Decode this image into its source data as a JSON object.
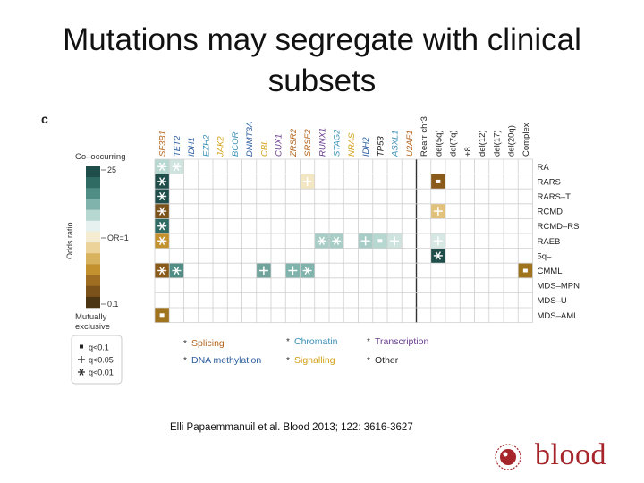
{
  "slide": {
    "title": "Mutations may segregate with clinical subsets",
    "citation": "Elli Papaemmanuil et al. Blood 2013; 122: 3616-3627",
    "logo_text": "blood"
  },
  "panel_label": "c",
  "legend": {
    "top_label": "Co–occurring",
    "bottom_label": "Mutually exclusive",
    "axis_label": "Odds ratio",
    "ticks": [
      "25",
      "OR=1",
      "0.1"
    ],
    "scale_colors": [
      "#1e4d4a",
      "#2f6b63",
      "#4f8d85",
      "#7fb3ab",
      "#b7d7d1",
      "#e7f1ef",
      "#f6ecd2",
      "#ecd39a",
      "#d9b25e",
      "#c3922f",
      "#a06e22",
      "#7a521a",
      "#4c3512"
    ],
    "significance": [
      {
        "symbol": "▪",
        "label": "q<0.1"
      },
      {
        "symbol": "+",
        "label": "q<0.05"
      },
      {
        "symbol": "✱",
        "label": "q<0.01"
      }
    ]
  },
  "categories": [
    {
      "symbol": "*",
      "label": "Splicing",
      "color": "#b5651d"
    },
    {
      "symbol": "*",
      "label": "Chromatin",
      "color": "#3a8fb7"
    },
    {
      "symbol": "*",
      "label": "Transcription",
      "color": "#6a3d8f"
    },
    {
      "symbol": "*",
      "label": "DNA methylation",
      "color": "#2a5d9f"
    },
    {
      "symbol": "*",
      "label": "Signalling",
      "color": "#d4a017"
    },
    {
      "symbol": "*",
      "label": "Other",
      "color": "#222222"
    }
  ],
  "columns": [
    {
      "label": "SF3B1",
      "color": "#b5651d"
    },
    {
      "label": "TET2",
      "color": "#2a5d9f"
    },
    {
      "label": "IDH1",
      "color": "#2a5d9f"
    },
    {
      "label": "EZH2",
      "color": "#3a8fb7"
    },
    {
      "label": "JAK2",
      "color": "#d4a017"
    },
    {
      "label": "BCOR",
      "color": "#3a8fb7"
    },
    {
      "label": "DNMT3A",
      "color": "#2a5d9f"
    },
    {
      "label": "CBL",
      "color": "#d4a017"
    },
    {
      "label": "CUX1",
      "color": "#6a3d8f"
    },
    {
      "label": "ZRSR2",
      "color": "#b5651d"
    },
    {
      "label": "SRSF2",
      "color": "#b5651d"
    },
    {
      "label": "RUNX1",
      "color": "#6a3d8f"
    },
    {
      "label": "STAG2",
      "color": "#3a8fb7"
    },
    {
      "label": "NRAS",
      "color": "#d4a017"
    },
    {
      "label": "IDH2",
      "color": "#2a5d9f"
    },
    {
      "label": "TP53",
      "color": "#222222"
    },
    {
      "label": "ASXL1",
      "color": "#3a8fb7"
    },
    {
      "label": "U2AF1",
      "color": "#b5651d"
    },
    {
      "label": "Rearr chr3",
      "color": "#222222"
    },
    {
      "label": "del(5q)",
      "color": "#222222"
    },
    {
      "label": "del(7q)",
      "color": "#222222"
    },
    {
      "label": "+8",
      "color": "#222222"
    },
    {
      "label": "del(12)",
      "color": "#222222"
    },
    {
      "label": "del(17)",
      "color": "#222222"
    },
    {
      "label": "del(20q)",
      "color": "#222222"
    },
    {
      "label": "Complex",
      "color": "#222222"
    }
  ],
  "rows": [
    "RA",
    "RARS",
    "RARS–T",
    "RCMD",
    "RCMD–RS",
    "RAEB",
    "5q–",
    "CMML",
    "MDS–MPN",
    "MDS–U",
    "MDS–AML"
  ],
  "cells": [
    {
      "row": 0,
      "col": 0,
      "fill": "#b7d7d1",
      "mark": "star"
    },
    {
      "row": 0,
      "col": 1,
      "fill": "#cfe3df",
      "mark": "star"
    },
    {
      "row": 1,
      "col": 0,
      "fill": "#1e4d4a",
      "mark": "star"
    },
    {
      "row": 1,
      "col": 10,
      "fill": "#f3e6c2",
      "mark": "plus"
    },
    {
      "row": 1,
      "col": 19,
      "fill": "#8a5a1a",
      "mark": "square"
    },
    {
      "row": 2,
      "col": 0,
      "fill": "#1e4d4a",
      "mark": "star"
    },
    {
      "row": 3,
      "col": 0,
      "fill": "#7a521a",
      "mark": "star"
    },
    {
      "row": 3,
      "col": 19,
      "fill": "#e2c27a",
      "mark": "plus"
    },
    {
      "row": 4,
      "col": 0,
      "fill": "#2f6b63",
      "mark": "star"
    },
    {
      "row": 5,
      "col": 0,
      "fill": "#c3922f",
      "mark": "star"
    },
    {
      "row": 5,
      "col": 11,
      "fill": "#a8cdc6",
      "mark": "star"
    },
    {
      "row": 5,
      "col": 12,
      "fill": "#a8cdc6",
      "mark": "star"
    },
    {
      "row": 5,
      "col": 14,
      "fill": "#a8cdc6",
      "mark": "plus"
    },
    {
      "row": 5,
      "col": 15,
      "fill": "#b7d7d1",
      "mark": "square"
    },
    {
      "row": 5,
      "col": 16,
      "fill": "#cfe3df",
      "mark": "plus"
    },
    {
      "row": 5,
      "col": 19,
      "fill": "#d7e8e4",
      "mark": "plus"
    },
    {
      "row": 6,
      "col": 19,
      "fill": "#1e4d4a",
      "mark": "star"
    },
    {
      "row": 7,
      "col": 0,
      "fill": "#8a5a1a",
      "mark": "star"
    },
    {
      "row": 7,
      "col": 1,
      "fill": "#4f8d85",
      "mark": "star"
    },
    {
      "row": 7,
      "col": 7,
      "fill": "#6fa39b",
      "mark": "plus"
    },
    {
      "row": 7,
      "col": 9,
      "fill": "#7fb3ab",
      "mark": "plus"
    },
    {
      "row": 7,
      "col": 10,
      "fill": "#7fb3ab",
      "mark": "star"
    },
    {
      "row": 7,
      "col": 25,
      "fill": "#a0731f",
      "mark": "square"
    },
    {
      "row": 10,
      "col": 0,
      "fill": "#a0731f",
      "mark": "square"
    }
  ]
}
